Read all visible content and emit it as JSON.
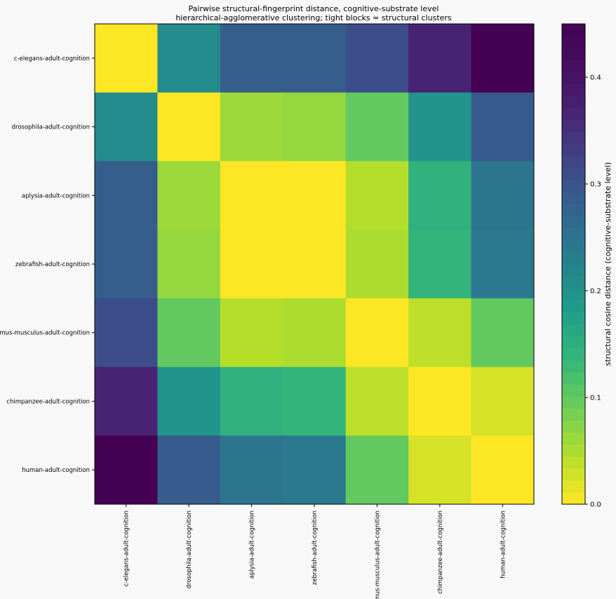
{
  "chart_data": {
    "type": "heatmap",
    "title": "Pairwise structural-fingerprint distance, cognitive-substrate level",
    "subtitle": "hierarchical-agglomerative clustering; tight blocks = structural clusters",
    "rows": [
      "c-elegans-adult-cognition",
      "drosophila-adult-cognition",
      "aplysia-adult-cognition",
      "zebrafish-adult-cognition",
      "mus-musculus-adult-cognition",
      "chimpanzee-adult-cognition",
      "human-adult-cognition"
    ],
    "columns": [
      "c-elegans-adult-cognition",
      "drosophila-adult-cognition",
      "aplysia-adult-cognition",
      "zebrafish-adult-cognition",
      "mus-musculus-adult-cognition",
      "chimpanzee-adult-cognition",
      "human-adult-cognition"
    ],
    "values": [
      [
        0.0,
        0.21,
        0.285,
        0.285,
        0.31,
        0.37,
        0.45
      ],
      [
        0.21,
        0.0,
        0.06,
        0.065,
        0.1,
        0.195,
        0.29
      ],
      [
        0.285,
        0.06,
        0.0,
        0.0,
        0.045,
        0.145,
        0.245
      ],
      [
        0.285,
        0.065,
        0.0,
        0.0,
        0.05,
        0.14,
        0.24
      ],
      [
        0.31,
        0.1,
        0.045,
        0.05,
        0.0,
        0.04,
        0.1
      ],
      [
        0.37,
        0.195,
        0.145,
        0.14,
        0.04,
        0.0,
        0.025
      ],
      [
        0.45,
        0.29,
        0.245,
        0.24,
        0.1,
        0.025,
        0.0
      ]
    ],
    "colorbar": {
      "label": "structural cosine distance (cognitive-substrate level)",
      "min": 0,
      "max": 0.45,
      "ticks": [
        {
          "value": 0.0,
          "label": "0.0"
        },
        {
          "value": 0.1,
          "label": "0.1"
        },
        {
          "value": 0.2,
          "label": "0.2"
        },
        {
          "value": 0.3,
          "label": "0.3"
        },
        {
          "value": 0.4,
          "label": "0.4"
        }
      ],
      "colormap": "viridis_r",
      "levels": 40
    }
  }
}
